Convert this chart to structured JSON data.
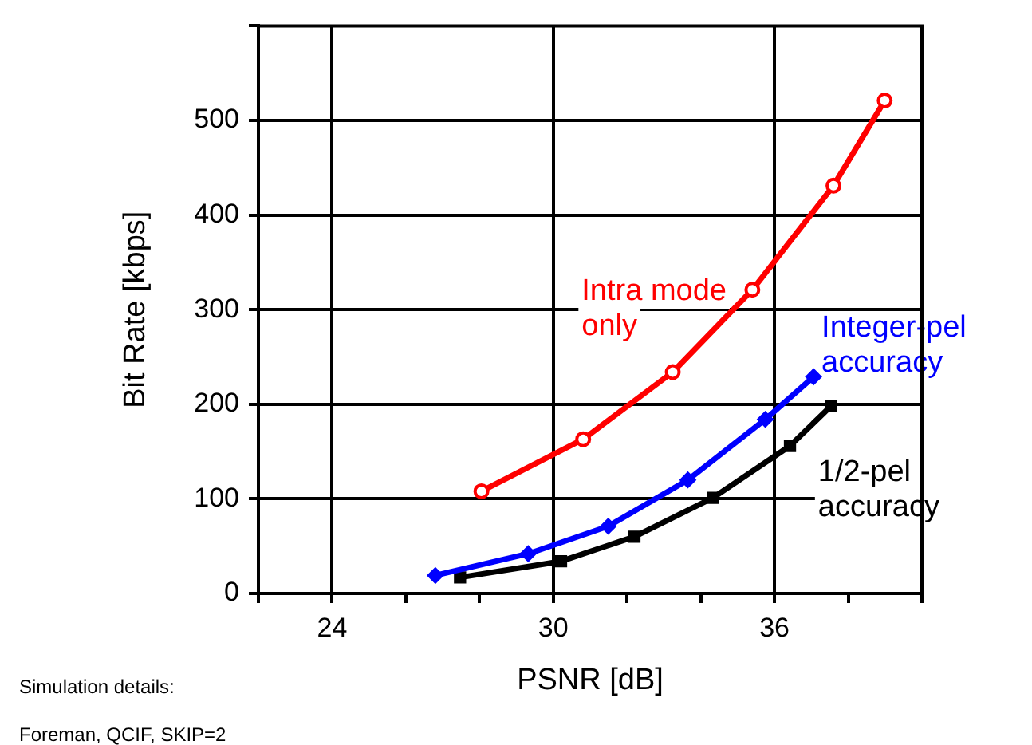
{
  "chart_data": {
    "type": "line",
    "xlabel": "PSNR [dB]",
    "ylabel": "Bit Rate [kbps]",
    "xlim": [
      22,
      40
    ],
    "xticks": [
      {
        "value": 22,
        "label": null
      },
      24,
      {
        "value": 26,
        "label": null
      },
      {
        "value": 28,
        "label": null
      },
      30,
      {
        "value": 32,
        "label": null
      },
      {
        "value": 34,
        "label": null
      },
      36,
      {
        "value": 38,
        "label": null
      },
      {
        "value": 40,
        "label": null
      }
    ],
    "ylim": [
      0,
      600
    ],
    "yticks": [
      0,
      100,
      200,
      300,
      400,
      500,
      {
        "value": 600,
        "label": null
      }
    ],
    "grid": true,
    "legend": false,
    "line_style": "solid",
    "series": [
      {
        "name": "Intra mode only",
        "color": "#ff0000",
        "marker": "circle",
        "x": [
          28.05,
          30.81,
          33.24,
          35.4,
          37.6,
          38.99
        ],
        "values": [
          108,
          163,
          234,
          321,
          431,
          521
        ]
      },
      {
        "name": "Integer-pel accuracy",
        "color": "#0000ff",
        "marker": "diamond",
        "x": [
          26.8,
          29.32,
          31.49,
          33.65,
          35.75,
          37.06
        ],
        "values": [
          19,
          42,
          71,
          120,
          184,
          229
        ]
      },
      {
        "name": "1/2-pel accuracy",
        "color": "#000000",
        "marker": "square",
        "x": [
          27.47,
          30.21,
          32.2,
          34.33,
          36.42,
          37.53
        ],
        "values": [
          17,
          34,
          60,
          101,
          156,
          198
        ]
      }
    ],
    "annotations": [
      "Simulation details:",
      "Foreman, QCIF, SKIP=2"
    ]
  }
}
